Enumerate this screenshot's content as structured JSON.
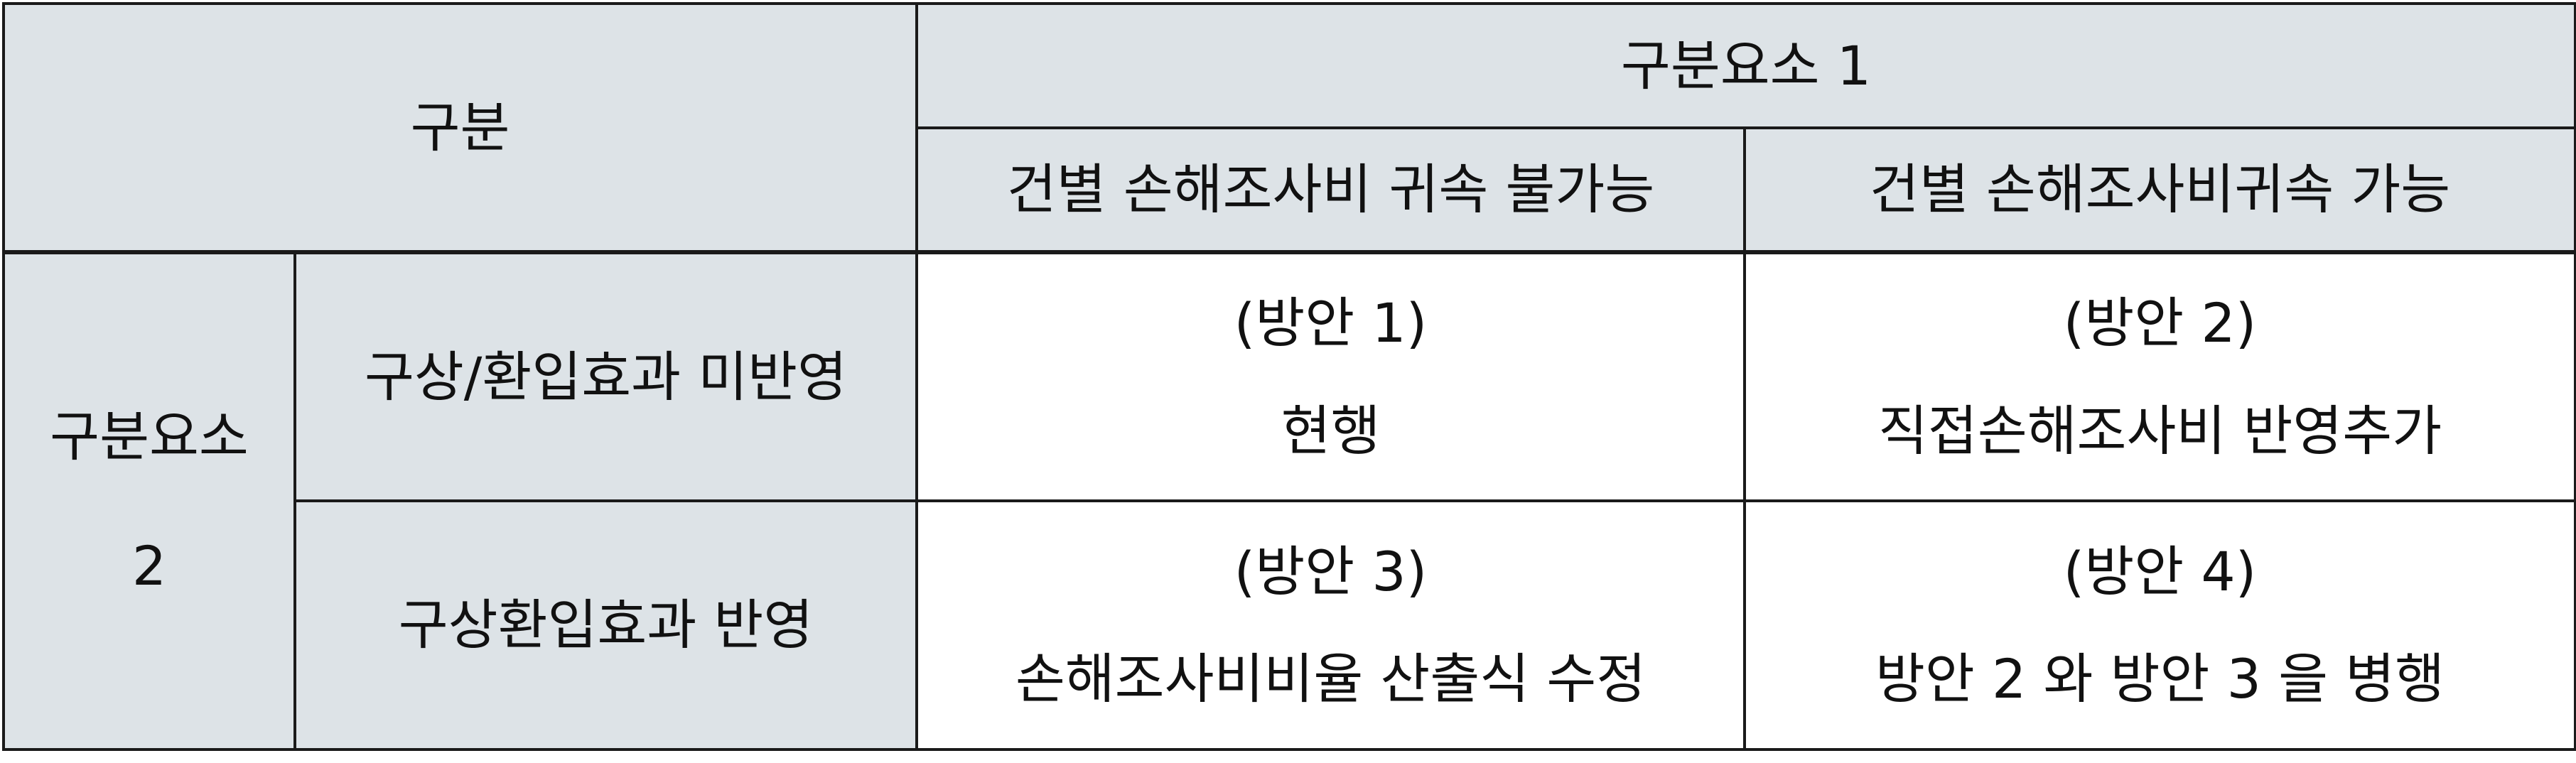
{
  "table": {
    "header": {
      "corner": "구분",
      "group1": "구분요소 1",
      "col1": "건별 손해조사비 귀속 불가능",
      "col2": "건별 손해조사비귀속 가능"
    },
    "group2": {
      "label_line1": "구분요소",
      "label_line2": "2"
    },
    "rows": [
      {
        "label": "구상/환입효과 미반영",
        "cells": [
          {
            "plan": "(방안 1)",
            "desc": "현행"
          },
          {
            "plan": "(방안 2)",
            "desc": "직접손해조사비 반영추가"
          }
        ]
      },
      {
        "label": "구상환입효과 반영",
        "cells": [
          {
            "plan": "(방안 3)",
            "desc": "손해조사비비율 산출식 수정"
          },
          {
            "plan": "(방안 4)",
            "desc": "방안 2 와 방안 3 을 병행"
          }
        ]
      }
    ]
  }
}
